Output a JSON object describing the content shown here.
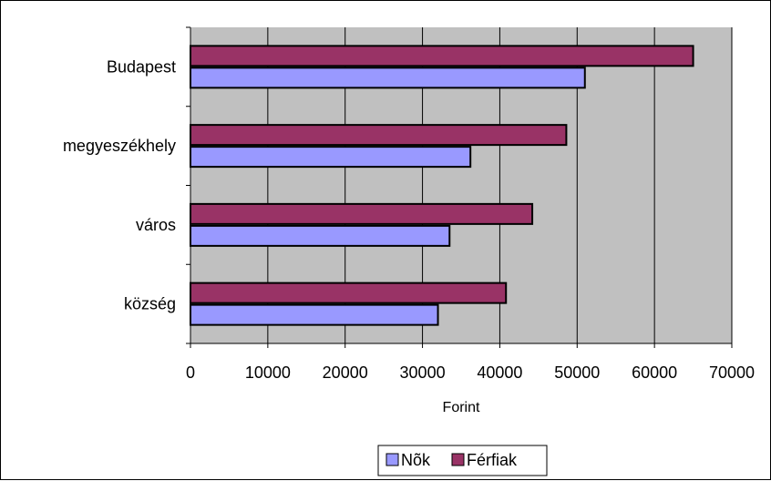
{
  "chart_data": {
    "type": "bar",
    "orientation": "horizontal",
    "categories": [
      "Budapest",
      "megyeszékhely",
      "város",
      "község"
    ],
    "series": [
      {
        "name": "Nõk",
        "color": "#9999FF",
        "values": [
          51000,
          36200,
          33500,
          32000
        ]
      },
      {
        "name": "Férfiak",
        "color": "#993366",
        "values": [
          65000,
          48600,
          44200,
          40800
        ]
      }
    ],
    "x_ticks": [
      "0",
      "10000",
      "20000",
      "30000",
      "40000",
      "50000",
      "60000",
      "70000"
    ],
    "xlabel": "Forint",
    "xlim": [
      0,
      70000
    ],
    "grid": true,
    "plot_background": "#C0C0C0",
    "legend_position": "bottom"
  }
}
